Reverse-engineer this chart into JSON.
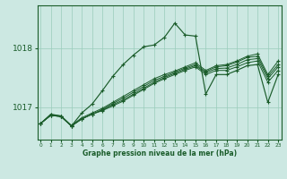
{
  "title": "Graphe pression niveau de la mer (hPa)",
  "bg_color": "#cce8e2",
  "grid_color": "#99ccbb",
  "line_color": "#1a5c2a",
  "x_ticks": [
    0,
    1,
    2,
    3,
    4,
    5,
    6,
    7,
    8,
    9,
    10,
    11,
    12,
    13,
    14,
    15,
    16,
    17,
    18,
    19,
    20,
    21,
    22,
    23
  ],
  "y_ticks": [
    1017,
    1018
  ],
  "ylim": [
    1016.45,
    1018.72
  ],
  "xlim": [
    -0.3,
    23.3
  ],
  "line_main": [
    1016.72,
    1016.88,
    1016.85,
    1016.68,
    1016.9,
    1017.05,
    1017.28,
    1017.52,
    1017.72,
    1017.88,
    1018.02,
    1018.05,
    1018.18,
    1018.42,
    1018.22,
    1018.2,
    1017.22,
    1017.55,
    1017.55,
    1017.62,
    1017.7,
    1017.72,
    1017.08,
    1017.55
  ],
  "line_a": [
    1016.72,
    1016.86,
    1016.84,
    1016.68,
    1016.8,
    1016.88,
    1016.94,
    1017.02,
    1017.1,
    1017.2,
    1017.3,
    1017.4,
    1017.48,
    1017.55,
    1017.62,
    1017.68,
    1017.55,
    1017.62,
    1017.62,
    1017.68,
    1017.75,
    1017.78,
    1017.42,
    1017.62
  ],
  "line_b": [
    1016.72,
    1016.86,
    1016.84,
    1016.68,
    1016.8,
    1016.88,
    1016.95,
    1017.04,
    1017.12,
    1017.22,
    1017.32,
    1017.42,
    1017.5,
    1017.57,
    1017.64,
    1017.7,
    1017.58,
    1017.65,
    1017.66,
    1017.72,
    1017.8,
    1017.82,
    1017.48,
    1017.68
  ],
  "line_c": [
    1016.72,
    1016.86,
    1016.84,
    1016.68,
    1016.8,
    1016.88,
    1016.96,
    1017.06,
    1017.15,
    1017.25,
    1017.35,
    1017.45,
    1017.52,
    1017.59,
    1017.66,
    1017.72,
    1017.6,
    1017.68,
    1017.7,
    1017.76,
    1017.84,
    1017.86,
    1017.52,
    1017.72
  ],
  "line_d": [
    1016.72,
    1016.87,
    1016.85,
    1016.69,
    1016.82,
    1016.9,
    1016.98,
    1017.08,
    1017.18,
    1017.28,
    1017.38,
    1017.48,
    1017.55,
    1017.61,
    1017.68,
    1017.75,
    1017.62,
    1017.7,
    1017.72,
    1017.78,
    1017.86,
    1017.9,
    1017.55,
    1017.78
  ]
}
